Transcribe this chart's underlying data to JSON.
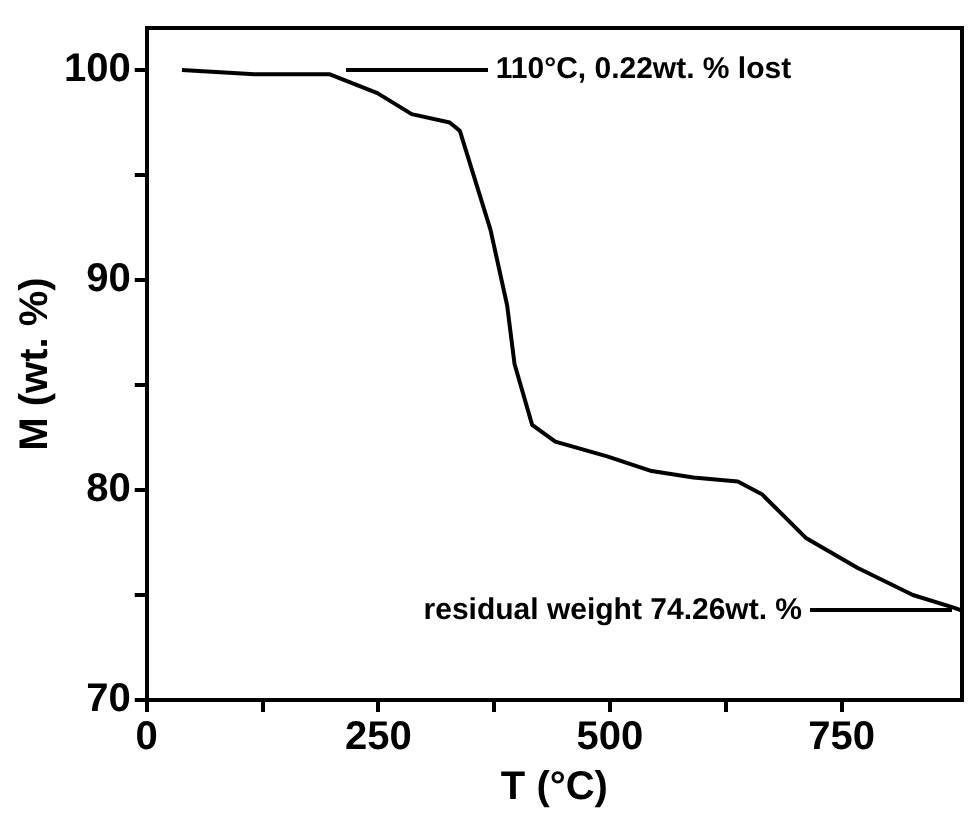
{
  "chart_data": {
    "type": "line",
    "xlabel": "T (°C)",
    "ylabel": "M (wt. %)",
    "xlim": [
      0,
      880
    ],
    "xticks": [
      0,
      {
        "value": 125,
        "label": null
      },
      250,
      {
        "value": 375,
        "label": null
      },
      500,
      {
        "value": 625,
        "label": null
      },
      750
    ],
    "ylim": [
      70,
      102
    ],
    "yticks": [
      70,
      {
        "value": 75,
        "label": null
      },
      80,
      {
        "value": 85,
        "label": null
      },
      90,
      {
        "value": 95,
        "label": null
      },
      100
    ],
    "grid": false,
    "legend": false,
    "marker": "none",
    "line_style": "solid",
    "series": [
      {
        "color": "#000000",
        "x": [
          38,
          116,
          197,
          249,
          286,
          327,
          338,
          371,
          389,
          397,
          416,
          441,
          497,
          545,
          590,
          638,
          664,
          712,
          767,
          827,
          871,
          880
        ],
        "values": [
          100,
          99.8,
          99.8,
          98.9,
          97.9,
          97.5,
          97.1,
          92.4,
          88.8,
          86,
          83.1,
          82.3,
          81.6,
          80.9,
          80.6,
          80.4,
          79.8,
          77.7,
          76.3,
          75,
          74.4,
          74.26
        ]
      }
    ],
    "annotations": [
      {
        "text": "110°C, 0.22wt. % lost",
        "x": 204,
        "y": 100
      },
      {
        "text": "residual weight 74.26wt. %",
        "x": 880,
        "y": 74.26
      }
    ]
  }
}
